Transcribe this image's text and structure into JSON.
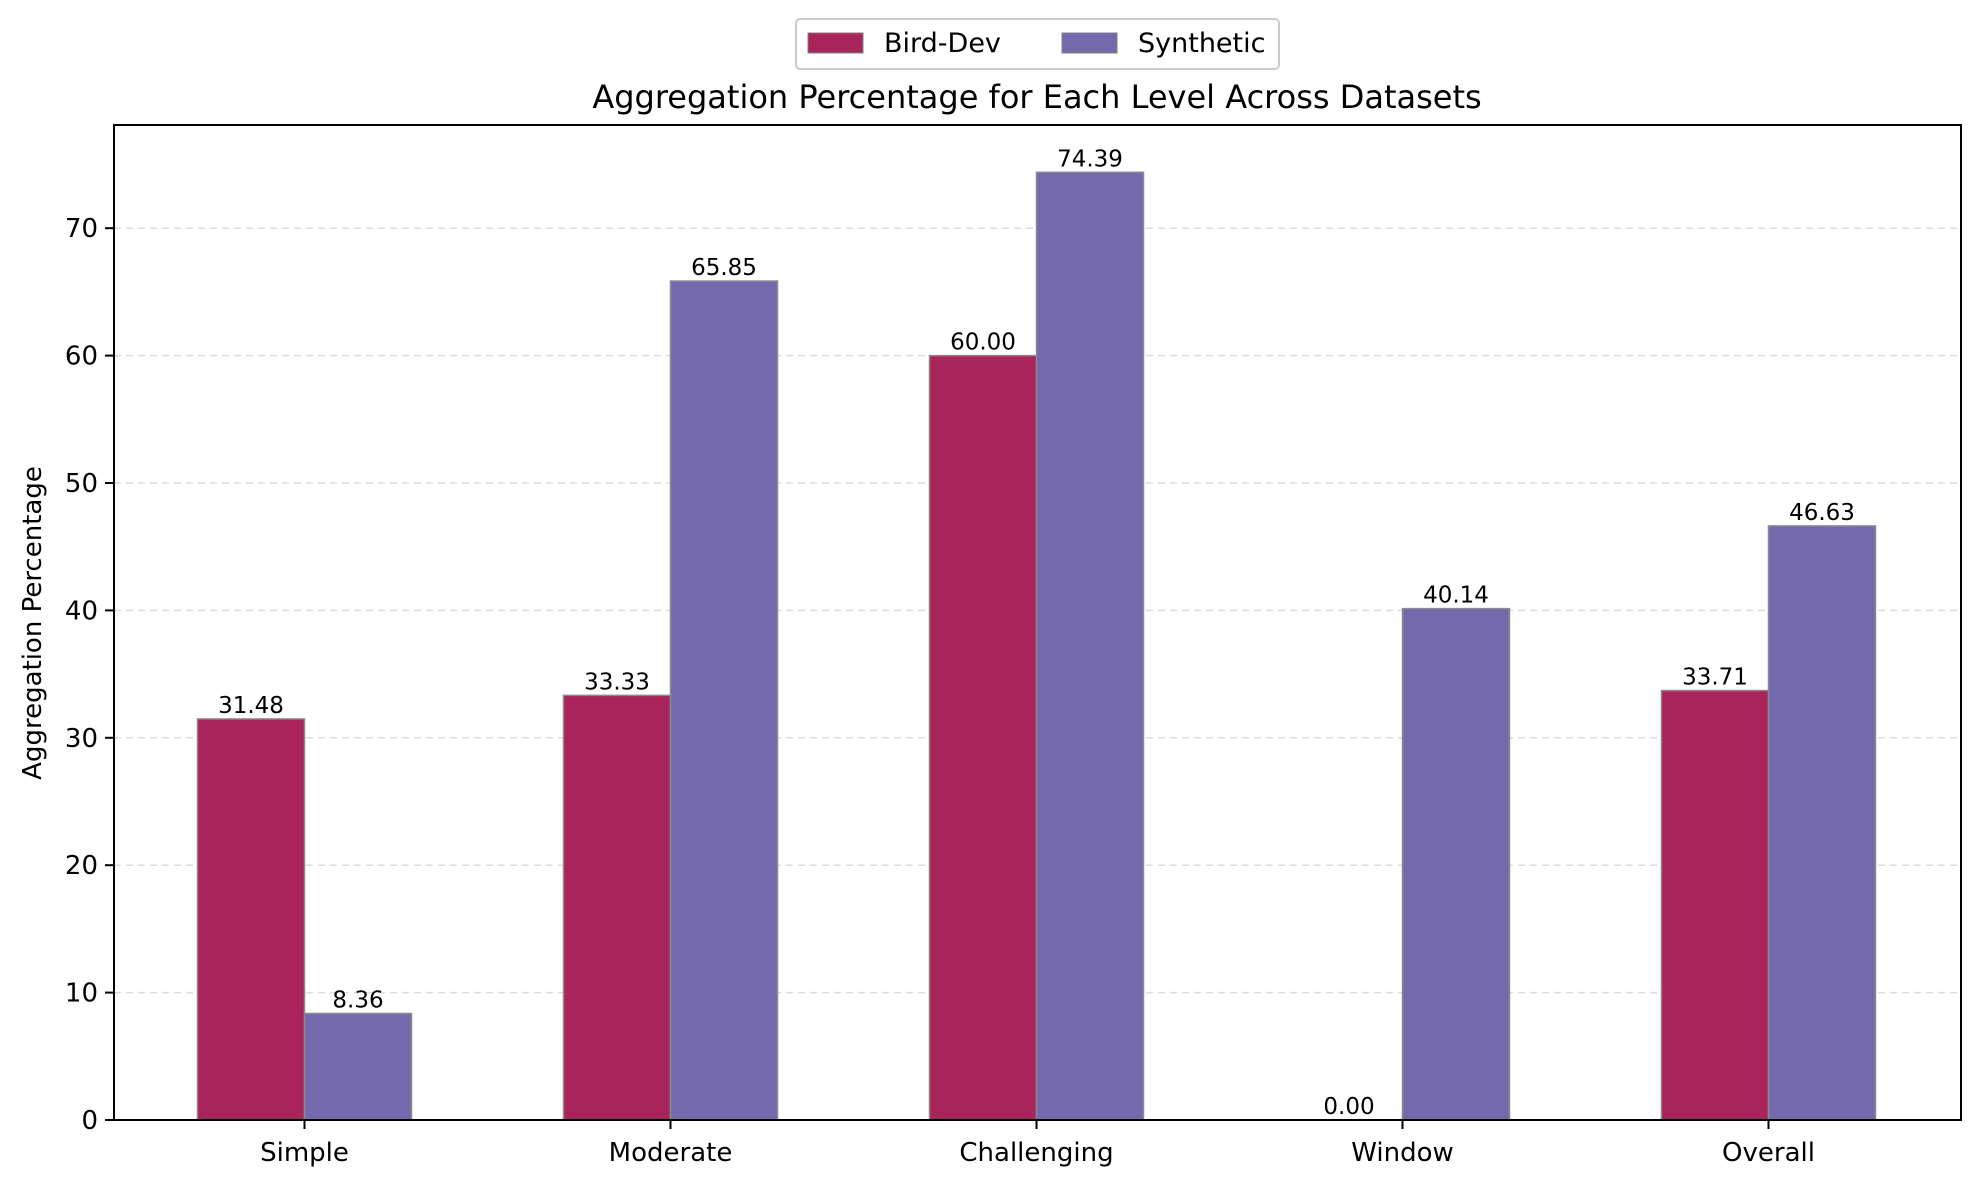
{
  "chart_data": {
    "type": "bar",
    "title": "Aggregation Percentage for Each Level Across Datasets",
    "xlabel": "",
    "ylabel": "Aggregation Percentage",
    "categories": [
      "Simple",
      "Moderate",
      "Challenging",
      "Window",
      "Overall"
    ],
    "series": [
      {
        "name": "Bird-Dev",
        "color": "#a8245a",
        "values": [
          31.48,
          33.33,
          60.0,
          0.0,
          33.71
        ],
        "labels": [
          "31.48",
          "33.33",
          "60.00",
          "0.00",
          "33.71"
        ]
      },
      {
        "name": "Synthetic",
        "color": "#7569ad",
        "values": [
          8.36,
          65.85,
          74.39,
          40.14,
          46.63
        ],
        "labels": [
          "8.36",
          "65.85",
          "74.39",
          "40.14",
          "46.63"
        ]
      }
    ],
    "ylim": [
      0,
      78.1
    ],
    "yticks": [
      0,
      10,
      20,
      30,
      40,
      50,
      60,
      70
    ],
    "grid": "y-dashed",
    "legend_position": "top-center"
  }
}
